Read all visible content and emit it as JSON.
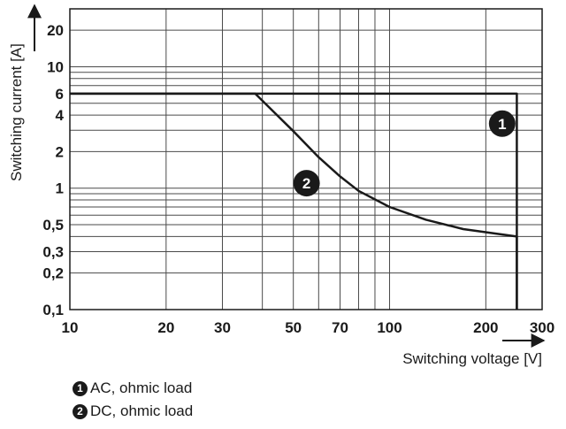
{
  "chart_data": {
    "type": "line",
    "xlabel": "Switching voltage [V]",
    "ylabel": "Switching current [A]",
    "x_scale": "log",
    "y_scale": "log",
    "xlim": [
      10,
      300
    ],
    "ylim": [
      0.1,
      30
    ],
    "x_ticks": [
      {
        "value": 10,
        "label": "10"
      },
      {
        "value": 20,
        "label": "20"
      },
      {
        "value": 30,
        "label": "30"
      },
      {
        "value": 50,
        "label": "50"
      },
      {
        "value": 70,
        "label": "70"
      },
      {
        "value": 100,
        "label": "100"
      },
      {
        "value": 200,
        "label": "200"
      },
      {
        "value": 300,
        "label": "300"
      }
    ],
    "y_ticks": [
      {
        "value": 0.1,
        "label": "0,1"
      },
      {
        "value": 0.2,
        "label": "0,2"
      },
      {
        "value": 0.3,
        "label": "0,3"
      },
      {
        "value": 0.5,
        "label": "0,5"
      },
      {
        "value": 1,
        "label": "1"
      },
      {
        "value": 2,
        "label": "2"
      },
      {
        "value": 4,
        "label": "4"
      },
      {
        "value": 6,
        "label": "6"
      },
      {
        "value": 10,
        "label": "10"
      },
      {
        "value": 20,
        "label": "20"
      }
    ],
    "x_grid": [
      10,
      20,
      30,
      40,
      50,
      60,
      70,
      80,
      90,
      100,
      200,
      300
    ],
    "y_grid": [
      0.1,
      0.2,
      0.3,
      0.4,
      0.5,
      0.6,
      0.7,
      0.8,
      0.9,
      1,
      2,
      3,
      4,
      5,
      6,
      7,
      8,
      9,
      10,
      20,
      30
    ],
    "grid": true,
    "series": [
      {
        "name": "AC, ohmic load",
        "marker_label": "1",
        "marker_at": [
          225,
          3.4
        ],
        "x": [
          10,
          250,
          250
        ],
        "y": [
          6,
          6,
          0.1
        ]
      },
      {
        "name": "DC, ohmic load",
        "marker_label": "2",
        "marker_at": [
          55,
          1.1
        ],
        "x": [
          10,
          38,
          50,
          60,
          70,
          80,
          100,
          130,
          170,
          250,
          250
        ],
        "y": [
          6,
          6,
          2.95,
          1.8,
          1.25,
          0.95,
          0.7,
          0.55,
          0.46,
          0.4,
          0.1
        ]
      }
    ]
  },
  "legend": [
    {
      "badge": "1",
      "label": "AC, ohmic load"
    },
    {
      "badge": "2",
      "label": "DC, ohmic load"
    }
  ]
}
